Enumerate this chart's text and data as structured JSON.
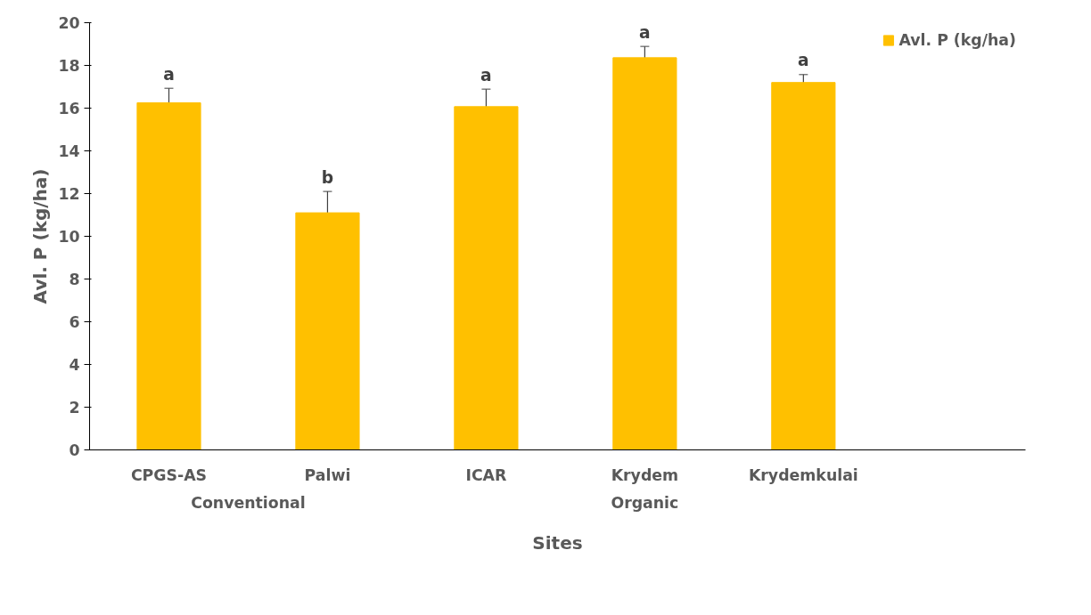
{
  "chart_data": {
    "type": "bar",
    "xlabel": "Sites",
    "ylabel": "Avl. P (kg/ha)",
    "categories": [
      "CPGS-AS",
      "Palwi",
      "ICAR",
      "Krydem",
      "Krydemkulai"
    ],
    "series": [
      {
        "name": "Avl. P (kg/ha)",
        "color": "#ffc000",
        "values": [
          16.25,
          11.1,
          16.07,
          18.36,
          17.2
        ],
        "errors": [
          0.68,
          1.0,
          0.82,
          0.53,
          0.37
        ]
      }
    ],
    "ylim": [
      0,
      20
    ],
    "yticks": [
      0,
      2,
      4,
      6,
      8,
      10,
      12,
      14,
      16,
      18,
      20
    ],
    "grid": false,
    "legend": "top right",
    "annotations": [
      "a",
      "b",
      "a",
      "a",
      "a",
      "Conventional",
      "Organic"
    ]
  }
}
